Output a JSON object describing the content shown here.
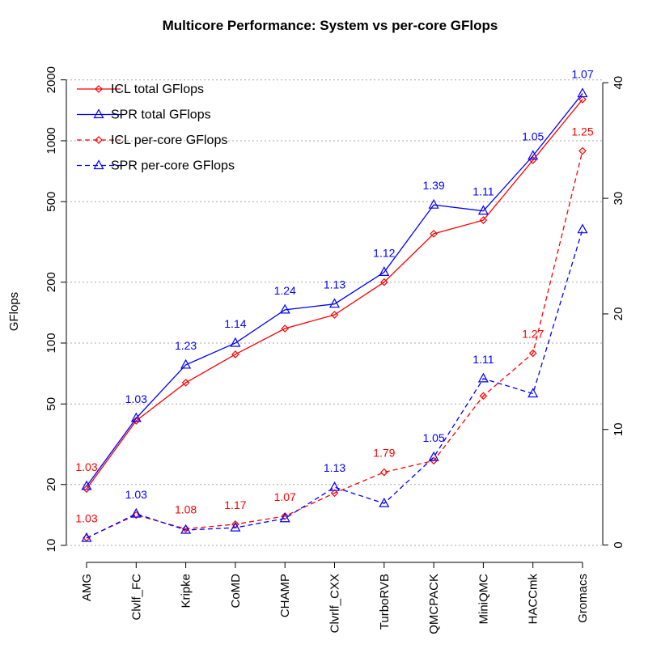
{
  "chart_data": {
    "type": "line",
    "title": "Multicore Performance: System vs per-core GFlops",
    "y_label": "GFlops",
    "categories": [
      "AMG",
      "Clvlf_FC",
      "Kripke",
      "CoMD",
      "CHAMP",
      "Clvrlf_CXX",
      "TurboRVB",
      "QMCPACK",
      "MiniQMC",
      "HACCmk",
      "Gromacs"
    ],
    "ylog": true,
    "ylim": [
      8.24,
      2420
    ],
    "yticks": [
      10,
      20,
      50,
      100,
      200,
      500,
      1000,
      2000
    ],
    "y2lim": [
      -1.5,
      41.7
    ],
    "y2ticks": [
      0,
      10,
      20,
      30,
      40
    ],
    "grid": true,
    "legend": "top-left",
    "series": [
      {
        "name": "ICL total GFlops",
        "color": "#ff0000",
        "marker": "diamond",
        "dashed": false,
        "values": [
          19,
          41.3,
          63.7,
          87.9,
          118,
          138,
          200,
          347,
          405,
          802,
          1600
        ]
      },
      {
        "name": "SPR total GFlops",
        "color": "#0000ff",
        "marker": "triangle",
        "dashed": false,
        "values": [
          19.6,
          42.5,
          78,
          100,
          146,
          156,
          224,
          482,
          450,
          842,
          1712
        ]
      },
      {
        "name": "ICL per-core GFlops",
        "color": "#ff0000",
        "marker": "diamond",
        "dashed": true,
        "axis": "y2",
        "values": [
          0.63,
          2.6,
          1.4,
          1.8,
          2.5,
          4.5,
          6.3,
          7.3,
          12.9,
          16.6,
          34.1
        ]
      },
      {
        "name": "SPR per-core GFlops",
        "color": "#0000ff",
        "marker": "triangle",
        "dashed": true,
        "axis": "y2",
        "values": [
          0.6,
          2.7,
          1.3,
          1.5,
          2.3,
          5.0,
          3.6,
          7.6,
          14.4,
          13.1,
          27.3
        ]
      }
    ],
    "annotations": [
      {
        "series_pair": [
          0,
          1
        ],
        "values": [
          1.03,
          1.03,
          1.23,
          1.14,
          1.24,
          1.13,
          1.12,
          1.39,
          1.11,
          1.05,
          1.07
        ],
        "colors": [
          "#ff0000",
          "#0000ff",
          "#0000ff",
          "#0000ff",
          "#0000ff",
          "#0000ff",
          "#0000ff",
          "#0000ff",
          "#0000ff",
          "#0000ff",
          "#0000ff"
        ]
      },
      {
        "series_pair": [
          2,
          3
        ],
        "values": [
          1.03,
          1.03,
          1.08,
          1.17,
          1.07,
          1.13,
          1.79,
          1.05,
          1.11,
          1.27,
          1.25
        ],
        "colors": [
          "#ff0000",
          "#0000ff",
          "#ff0000",
          "#ff0000",
          "#ff0000",
          "#0000ff",
          "#ff0000",
          "#0000ff",
          "#0000ff",
          "#ff0000",
          "#ff0000"
        ]
      }
    ]
  }
}
